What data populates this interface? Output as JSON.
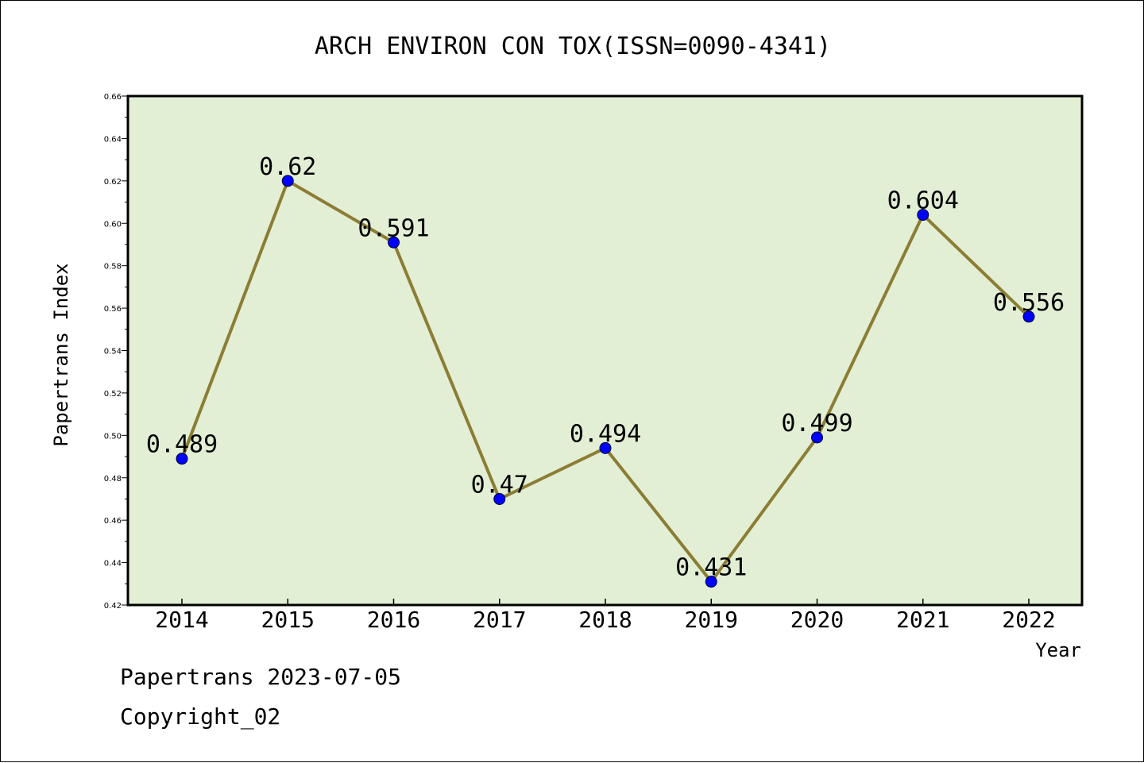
{
  "chart_data": {
    "type": "line",
    "title": "ARCH ENVIRON CON TOX(ISSN=0090-4341)",
    "xlabel": "Year",
    "ylabel": "Papertrans Index",
    "categories": [
      "2014",
      "2015",
      "2016",
      "2017",
      "2018",
      "2019",
      "2020",
      "2021",
      "2022"
    ],
    "series": [
      {
        "values": [
          0.489,
          0.62,
          0.591,
          0.47,
          0.494,
          0.431,
          0.499,
          0.604,
          0.556
        ],
        "data_labels": [
          "0.489",
          "0.62",
          "0.591",
          "0.47",
          "0.494",
          "0.431",
          "0.499",
          "0.604",
          "0.556"
        ]
      }
    ],
    "ylim": [
      0.42,
      0.66
    ],
    "yticks": [
      "0.42",
      "0.44",
      "0.46",
      "0.48",
      "0.50",
      "0.52",
      "0.54",
      "0.56",
      "0.58",
      "0.60",
      "0.62",
      "0.64",
      "0.66"
    ],
    "grid": false,
    "legend": "none",
    "colors": {
      "plot_background": "#e2efd5",
      "line": "#8b7d34",
      "marker": "#0000ff"
    }
  },
  "footer": {
    "line1": "Papertrans 2023-07-05",
    "line2": "Copyright_02"
  }
}
